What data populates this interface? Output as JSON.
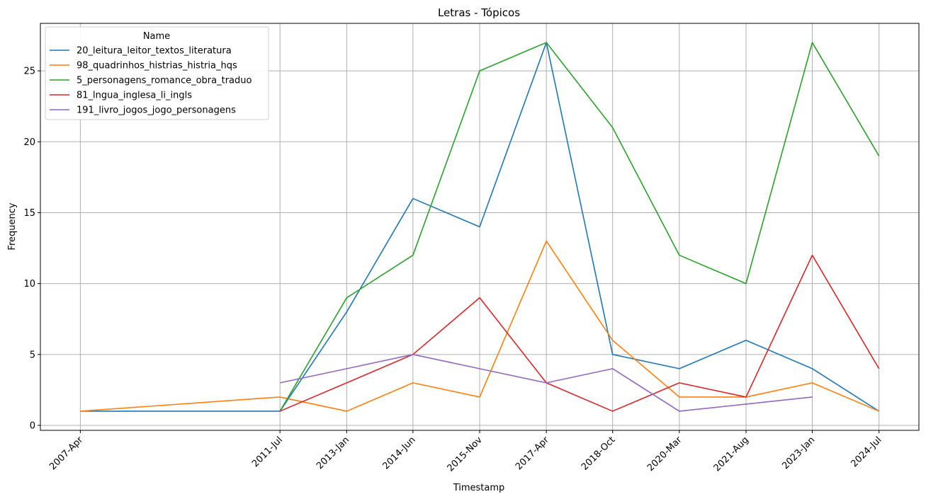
{
  "chart_data": {
    "type": "line",
    "title": "Letras - Tópicos",
    "xlabel": "Timestamp",
    "ylabel": "Frequency",
    "x": [
      "2007-Apr",
      "2011-Jul",
      "2013-Jan",
      "2014-Jun",
      "2015-Nov",
      "2017-Apr",
      "2018-Oct",
      "2020-Mar",
      "2021-Aug",
      "2023-Jan",
      "2024-Jul"
    ],
    "x_numeric": [
      2007.25,
      2011.5,
      2012.92,
      2014.33,
      2015.75,
      2017.17,
      2018.58,
      2020.0,
      2021.42,
      2022.83,
      2024.25
    ],
    "ylim": [
      -0.35,
      28.35
    ],
    "yticks": [
      0,
      5,
      10,
      15,
      20,
      25
    ],
    "grid": true,
    "legend": {
      "title": "Name",
      "position": "top-left"
    },
    "series": [
      {
        "name": "20_leitura_leitor_textos_literatura",
        "color": "#1f77b4",
        "values": [
          1,
          1,
          8,
          16,
          14,
          27,
          5,
          4,
          6,
          4,
          1
        ]
      },
      {
        "name": "98_quadrinhos_histrias_histria_hqs",
        "color": "#ff7f0e",
        "values": [
          1,
          2,
          1,
          3,
          2,
          13,
          6,
          2,
          2,
          3,
          1
        ]
      },
      {
        "name": "5_personagens_romance_obra_traduo",
        "color": "#2ca02c",
        "values": [
          null,
          1,
          9,
          12,
          25,
          27,
          21,
          12,
          10,
          27,
          19
        ]
      },
      {
        "name": "81_lngua_inglesa_li_ingls",
        "color": "#d62728",
        "values": [
          null,
          1,
          3,
          5,
          9,
          3,
          1,
          3,
          2,
          12,
          4
        ]
      },
      {
        "name": "191_livro_jogos_jogo_personagens",
        "color": "#9467bd",
        "values": [
          null,
          3,
          4,
          5,
          4,
          3,
          4,
          1,
          1.5,
          2,
          null
        ]
      }
    ]
  }
}
